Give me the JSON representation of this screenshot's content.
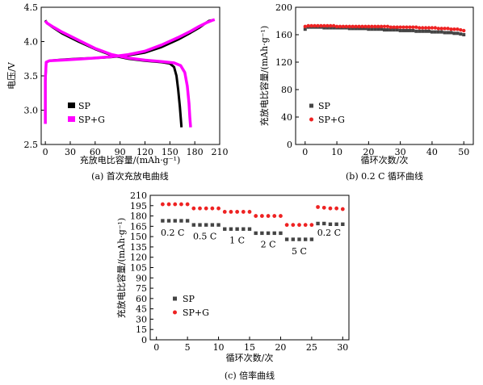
{
  "chart_data": [
    {
      "type": "line",
      "xlabel": "充放电比容量/(mAh·g⁻¹)",
      "ylabel": "电压/V",
      "caption": "(a) 首次充放电曲线",
      "xlim": [
        -5,
        210
      ],
      "ylim": [
        2.5,
        4.5
      ],
      "xticks": [
        "0",
        "30",
        "60",
        "90",
        "120",
        "150",
        "180",
        "210"
      ],
      "yticks": [
        "2.5",
        "3.0",
        "3.5",
        "4.0",
        "4.5"
      ],
      "legend_position": "bottom-left",
      "colors": {
        "SP": "#000000",
        "SP+G": "#ff00ff"
      },
      "series": [
        {
          "name": "SP",
          "charge": [
            [
              0,
              2.8
            ],
            [
              0,
              3.42
            ],
            [
              1,
              3.7
            ],
            [
              5,
              3.72
            ],
            [
              20,
              3.735
            ],
            [
              40,
              3.75
            ],
            [
              60,
              3.76
            ],
            [
              80,
              3.775
            ],
            [
              100,
              3.8
            ],
            [
              120,
              3.84
            ],
            [
              140,
              3.92
            ],
            [
              160,
              4.03
            ],
            [
              175,
              4.13
            ],
            [
              185,
              4.2
            ],
            [
              192,
              4.26
            ],
            [
              197,
              4.3
            ],
            [
              200,
              4.31
            ]
          ],
          "discharge": [
            [
              0,
              4.31
            ],
            [
              2,
              4.27
            ],
            [
              10,
              4.2
            ],
            [
              20,
              4.12
            ],
            [
              40,
              4.0
            ],
            [
              60,
              3.89
            ],
            [
              80,
              3.8
            ],
            [
              100,
              3.75
            ],
            [
              120,
              3.72
            ],
            [
              140,
              3.7
            ],
            [
              150,
              3.68
            ],
            [
              155,
              3.63
            ],
            [
              158,
              3.5
            ],
            [
              160,
              3.3
            ],
            [
              162,
              3.05
            ],
            [
              163,
              2.9
            ],
            [
              164,
              2.75
            ]
          ]
        },
        {
          "name": "SP+G",
          "charge": [
            [
              0,
              2.8
            ],
            [
              0,
              3.45
            ],
            [
              1,
              3.7
            ],
            [
              5,
              3.72
            ],
            [
              20,
              3.73
            ],
            [
              40,
              3.745
            ],
            [
              60,
              3.76
            ],
            [
              80,
              3.78
            ],
            [
              100,
              3.81
            ],
            [
              120,
              3.86
            ],
            [
              140,
              3.95
            ],
            [
              160,
              4.06
            ],
            [
              175,
              4.15
            ],
            [
              185,
              4.22
            ],
            [
              195,
              4.28
            ],
            [
              201,
              4.31
            ],
            [
              204,
              4.32
            ]
          ],
          "discharge": [
            [
              0,
              4.3
            ],
            [
              2,
              4.27
            ],
            [
              10,
              4.21
            ],
            [
              20,
              4.14
            ],
            [
              40,
              4.02
            ],
            [
              60,
              3.9
            ],
            [
              80,
              3.81
            ],
            [
              100,
              3.76
            ],
            [
              120,
              3.73
            ],
            [
              140,
              3.71
            ],
            [
              155,
              3.69
            ],
            [
              163,
              3.65
            ],
            [
              168,
              3.55
            ],
            [
              171,
              3.35
            ],
            [
              173,
              3.1
            ],
            [
              174,
              2.9
            ],
            [
              175,
              2.75
            ]
          ]
        }
      ]
    },
    {
      "type": "scatter",
      "xlabel": "循环次数/次",
      "ylabel": "充放电比容量/(mAh·g⁻¹)",
      "caption": "(b) 0.2 C 循环曲线",
      "xlim": [
        -3,
        53
      ],
      "ylim": [
        0,
        200
      ],
      "xticks": [
        "0",
        "10",
        "20",
        "30",
        "40",
        "50"
      ],
      "yticks": [
        "0",
        "40",
        "80",
        "120",
        "160",
        "200"
      ],
      "legend_position": "bottom-left",
      "colors": {
        "SP": "#444444",
        "SP+G": "#ee2222"
      },
      "x": [
        0,
        1,
        2,
        3,
        4,
        5,
        6,
        7,
        8,
        9,
        10,
        11,
        12,
        13,
        14,
        15,
        16,
        17,
        18,
        19,
        20,
        21,
        22,
        23,
        24,
        25,
        26,
        27,
        28,
        29,
        30,
        31,
        32,
        33,
        34,
        35,
        36,
        37,
        38,
        39,
        40,
        41,
        42,
        43,
        44,
        45,
        46,
        47,
        48,
        49,
        50
      ],
      "series": [
        {
          "name": "SP",
          "values": [
            168,
            171,
            171,
            171,
            171,
            171,
            170,
            170,
            170,
            170,
            170,
            170,
            170,
            170,
            169,
            169,
            169,
            169,
            169,
            169,
            168,
            168,
            168,
            168,
            168,
            167,
            167,
            167,
            167,
            167,
            166,
            166,
            166,
            166,
            166,
            165,
            165,
            165,
            165,
            165,
            164,
            164,
            164,
            164,
            163,
            163,
            163,
            162,
            162,
            161,
            160
          ]
        },
        {
          "name": "SP+G",
          "values": [
            172,
            173,
            173,
            173,
            173,
            173,
            173,
            173,
            173,
            173,
            172,
            172,
            172,
            172,
            172,
            172,
            172,
            172,
            172,
            172,
            172,
            172,
            172,
            172,
            172,
            172,
            172,
            171,
            171,
            171,
            171,
            171,
            171,
            171,
            171,
            171,
            170,
            170,
            170,
            170,
            170,
            170,
            169,
            169,
            169,
            169,
            168,
            168,
            168,
            167,
            166
          ]
        }
      ]
    },
    {
      "type": "scatter",
      "xlabel": "循环次数/次",
      "ylabel": "充放电比容量/(mAh·g⁻¹)",
      "caption": "(c) 倍率曲线",
      "xlim": [
        -1,
        31
      ],
      "ylim": [
        0,
        210
      ],
      "xticks": [
        "0",
        "5",
        "10",
        "15",
        "20",
        "25",
        "30"
      ],
      "yticks": [
        "0",
        "15",
        "30",
        "45",
        "60",
        "75",
        "90",
        "105",
        "120",
        "135",
        "150",
        "165",
        "180",
        "195",
        "210"
      ],
      "legend_position": "bottom-left",
      "colors": {
        "SP": "#444444",
        "SP+G": "#ee2222"
      },
      "annotations": [
        {
          "text": "0.2 C",
          "x": 2.6,
          "y": 156
        },
        {
          "text": "0.5 C",
          "x": 7.8,
          "y": 151
        },
        {
          "text": "1 C",
          "x": 13,
          "y": 145
        },
        {
          "text": "2 C",
          "x": 18,
          "y": 139
        },
        {
          "text": "5 C",
          "x": 23,
          "y": 129
        },
        {
          "text": "0.2 C",
          "x": 27.8,
          "y": 156
        }
      ],
      "x": [
        1,
        2,
        3,
        4,
        5,
        6,
        7,
        8,
        9,
        10,
        11,
        12,
        13,
        14,
        15,
        16,
        17,
        18,
        19,
        20,
        21,
        22,
        23,
        24,
        25,
        26,
        27,
        28,
        29,
        30
      ],
      "series": [
        {
          "name": "SP",
          "values": [
            173,
            173,
            173,
            173,
            173,
            167,
            167,
            167,
            167,
            167,
            161,
            161,
            161,
            161,
            161,
            155,
            155,
            155,
            155,
            155,
            146,
            146,
            146,
            146,
            146,
            169,
            169,
            168,
            168,
            168
          ]
        },
        {
          "name": "SP+G",
          "values": [
            197,
            197,
            197,
            197,
            197,
            191,
            191,
            191,
            191,
            191,
            186,
            186,
            186,
            186,
            186,
            180,
            180,
            180,
            180,
            180,
            167,
            167,
            167,
            167,
            167,
            193,
            192,
            191,
            191,
            190
          ]
        }
      ]
    }
  ]
}
